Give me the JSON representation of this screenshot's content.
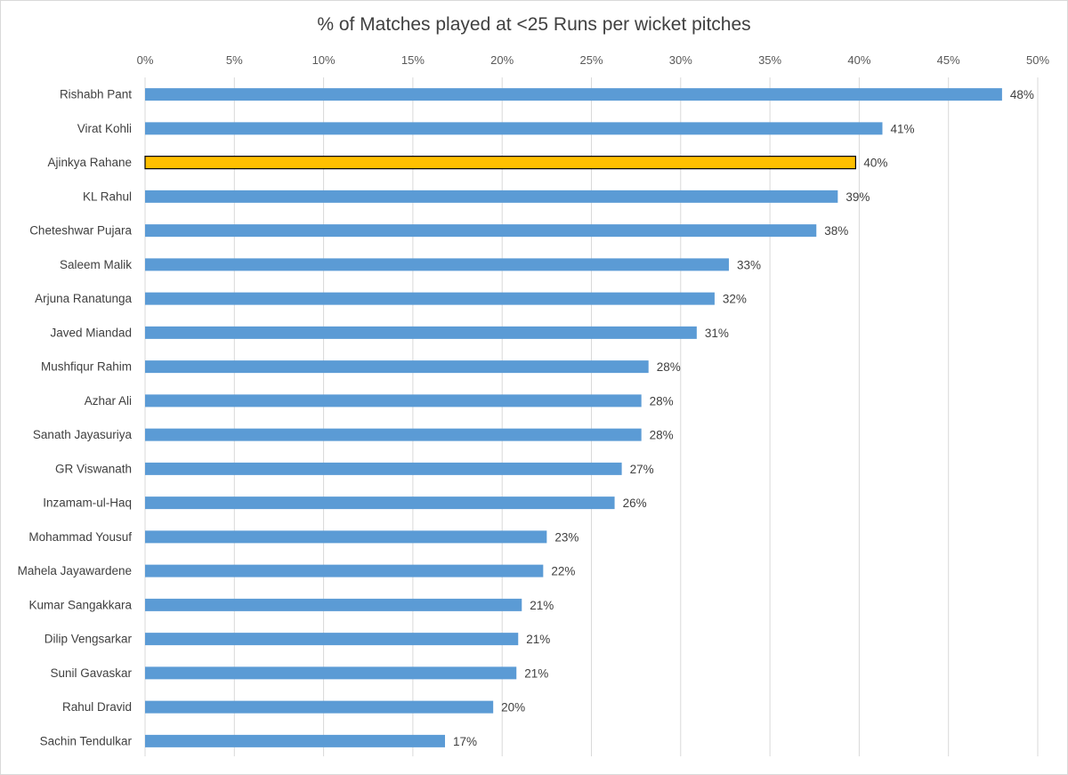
{
  "chart_data": {
    "type": "bar",
    "orientation": "horizontal",
    "title": "% of Matches played at <25 Runs per wicket pitches",
    "xlabel": "",
    "ylabel": "",
    "xlim": [
      0,
      50
    ],
    "x_ticks": [
      "0%",
      "5%",
      "10%",
      "15%",
      "20%",
      "25%",
      "30%",
      "35%",
      "40%",
      "45%",
      "50%"
    ],
    "x_axis_position": "top",
    "grid": "vertical",
    "legend": "none",
    "categories": [
      "Rishabh Pant",
      "Virat Kohli",
      "Ajinkya Rahane",
      "KL Rahul",
      "Cheteshwar Pujara",
      "Saleem Malik",
      "Arjuna Ranatunga",
      "Javed Miandad",
      "Mushfiqur Rahim",
      "Azhar Ali",
      "Sanath Jayasuriya",
      "GR Viswanath",
      "Inzamam-ul-Haq",
      "Mohammad Yousuf",
      "Mahela Jayawardene",
      "Kumar Sangakkara",
      "Dilip Vengsarkar",
      "Sunil Gavaskar",
      "Rahul Dravid",
      "Sachin Tendulkar"
    ],
    "values": [
      48.0,
      41.3,
      39.8,
      38.8,
      37.6,
      32.7,
      31.9,
      30.9,
      28.2,
      27.8,
      27.8,
      26.7,
      26.3,
      22.5,
      22.3,
      21.1,
      20.9,
      20.8,
      19.5,
      16.8
    ],
    "data_labels": [
      "48%",
      "41%",
      "40%",
      "39%",
      "38%",
      "33%",
      "32%",
      "31%",
      "28%",
      "28%",
      "28%",
      "27%",
      "26%",
      "23%",
      "22%",
      "21%",
      "21%",
      "21%",
      "20%",
      "17%"
    ],
    "highlight_index": 2,
    "colors": {
      "bar": "#5b9bd5",
      "highlight": "#ffc000",
      "highlight_border": "#000000",
      "grid": "#d9d9d9"
    }
  }
}
